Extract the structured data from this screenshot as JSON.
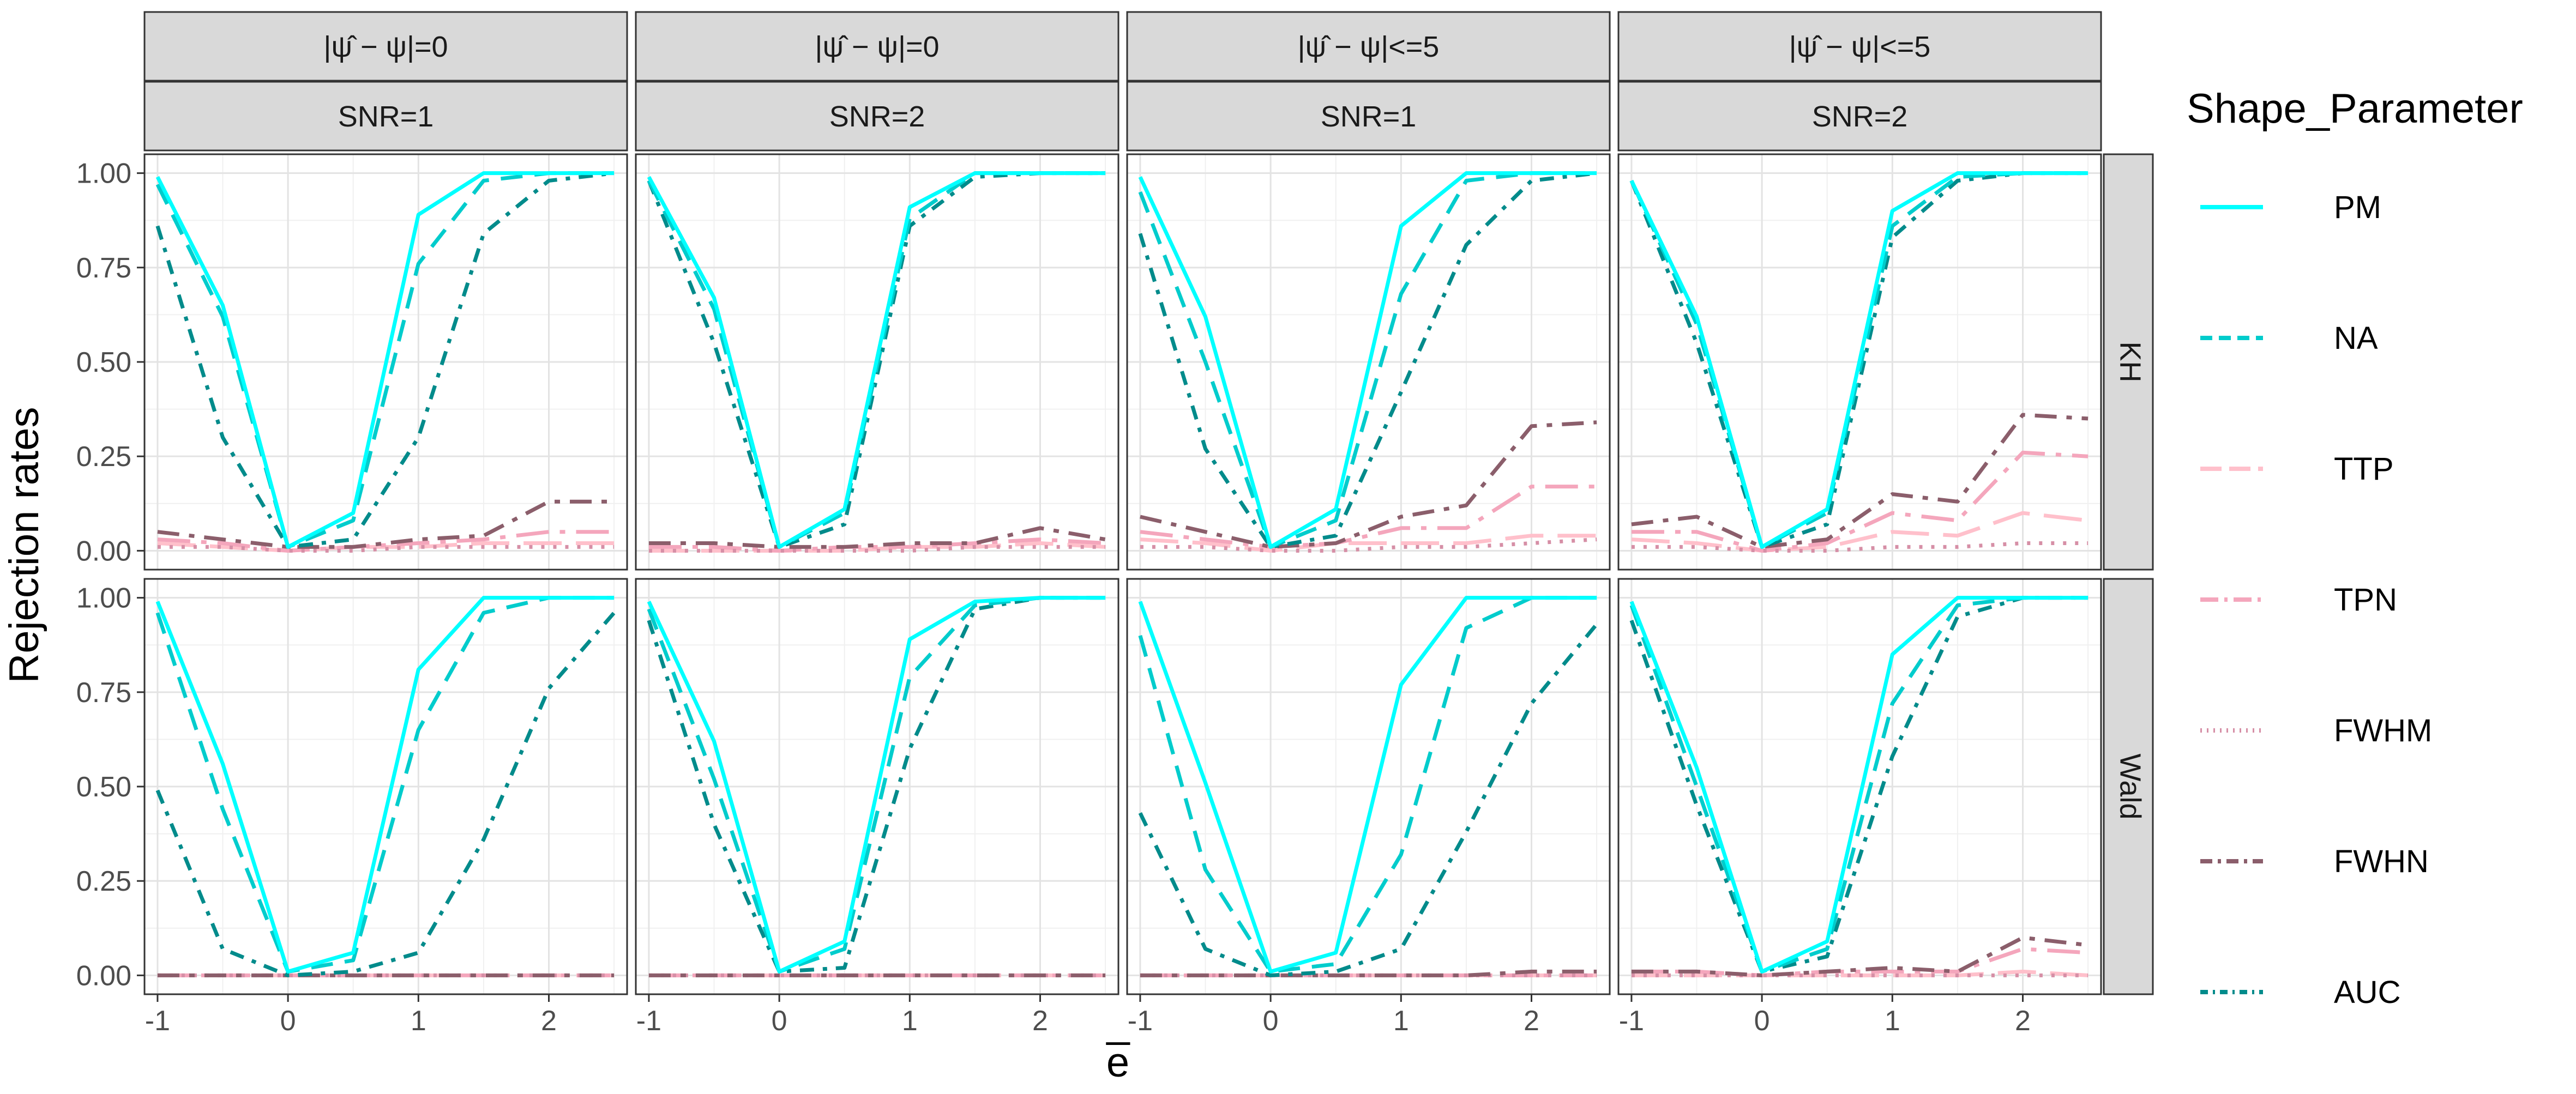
{
  "chart_data": {
    "type": "line",
    "facet_columns": [
      {
        "top": "|ψ̂ − ψ|=0",
        "bottom": "SNR=1"
      },
      {
        "top": "|ψ̂ − ψ|=0",
        "bottom": "SNR=2"
      },
      {
        "top": "|ψ̂ − ψ|<=5",
        "bottom": "SNR=1"
      },
      {
        "top": "|ψ̂ − ψ|<=5",
        "bottom": "SNR=2"
      }
    ],
    "facet_rows": [
      "KH",
      "Wald"
    ],
    "xlabel": "e̅",
    "ylabel": "Rejection rates",
    "x": [
      -1,
      -0.5,
      0,
      0.5,
      1,
      1.5,
      2,
      2.5
    ],
    "xlim": [
      -1.1,
      2.6
    ],
    "ylim": [
      -0.05,
      1.05
    ],
    "xticks": [
      -1,
      0,
      1,
      2
    ],
    "yticks": [
      0,
      0.25,
      0.5,
      0.75,
      1
    ],
    "ytick_labels": [
      "0.00",
      "0.25",
      "0.50",
      "0.75",
      "1.00"
    ],
    "legend": {
      "title": "Shape_Parameter",
      "position": "right",
      "entries": [
        {
          "name": "PM",
          "color": "#00FFFF",
          "dash": "solid"
        },
        {
          "name": "NA",
          "color": "#00CCCC",
          "dash": "dashed"
        },
        {
          "name": "TTP",
          "color": "#FFC0CB",
          "dash": "longdash"
        },
        {
          "name": "TPN",
          "color": "#F4A6BC",
          "dash": "dashdot-long"
        },
        {
          "name": "FWHM",
          "color": "#D68FA6",
          "dash": "dotted"
        },
        {
          "name": "FWHN",
          "color": "#8B5E6B",
          "dash": "dashdot"
        },
        {
          "name": "AUC",
          "color": "#008B8B",
          "dash": "dashdot-short"
        }
      ]
    },
    "panels": [
      {
        "row": 0,
        "col": 0,
        "series": {
          "PM": [
            0.99,
            0.65,
            0.01,
            0.1,
            0.89,
            1.0,
            1.0,
            1.0
          ],
          "NA": [
            0.97,
            0.62,
            0.01,
            0.08,
            0.76,
            0.98,
            1.0,
            1.0
          ],
          "TTP": [
            0.02,
            0.01,
            0.0,
            0.01,
            0.01,
            0.02,
            0.02,
            0.02
          ],
          "TPN": [
            0.03,
            0.02,
            0.0,
            0.01,
            0.02,
            0.03,
            0.05,
            0.05
          ],
          "FWHM": [
            0.01,
            0.01,
            0.0,
            0.0,
            0.01,
            0.01,
            0.01,
            0.01
          ],
          "FWHN": [
            0.05,
            0.03,
            0.01,
            0.01,
            0.03,
            0.04,
            0.13,
            0.13
          ],
          "AUC": [
            0.86,
            0.3,
            0.01,
            0.03,
            0.3,
            0.84,
            0.98,
            1.0
          ]
        }
      },
      {
        "row": 0,
        "col": 1,
        "series": {
          "PM": [
            0.99,
            0.67,
            0.01,
            0.11,
            0.91,
            1.0,
            1.0,
            1.0
          ],
          "NA": [
            0.98,
            0.64,
            0.01,
            0.1,
            0.88,
            1.0,
            1.0,
            1.0
          ],
          "TTP": [
            0.0,
            0.0,
            0.0,
            0.0,
            0.01,
            0.01,
            0.02,
            0.01
          ],
          "TPN": [
            0.01,
            0.01,
            0.0,
            0.01,
            0.01,
            0.02,
            0.03,
            0.02
          ],
          "FWHM": [
            0.0,
            0.0,
            0.0,
            0.0,
            0.0,
            0.01,
            0.01,
            0.01
          ],
          "FWHN": [
            0.02,
            0.02,
            0.01,
            0.01,
            0.02,
            0.02,
            0.06,
            0.03
          ],
          "AUC": [
            0.98,
            0.55,
            0.01,
            0.07,
            0.86,
            0.99,
            1.0,
            1.0
          ]
        }
      },
      {
        "row": 0,
        "col": 2,
        "series": {
          "PM": [
            0.99,
            0.62,
            0.01,
            0.11,
            0.86,
            1.0,
            1.0,
            1.0
          ],
          "NA": [
            0.95,
            0.5,
            0.01,
            0.08,
            0.68,
            0.98,
            1.0,
            1.0
          ],
          "TTP": [
            0.03,
            0.02,
            0.0,
            0.02,
            0.02,
            0.02,
            0.04,
            0.04
          ],
          "TPN": [
            0.05,
            0.03,
            0.01,
            0.02,
            0.06,
            0.06,
            0.17,
            0.17
          ],
          "FWHM": [
            0.01,
            0.01,
            0.0,
            0.0,
            0.01,
            0.01,
            0.02,
            0.03
          ],
          "FWHN": [
            0.09,
            0.05,
            0.01,
            0.02,
            0.09,
            0.12,
            0.33,
            0.34
          ],
          "AUC": [
            0.84,
            0.27,
            0.01,
            0.04,
            0.42,
            0.81,
            0.98,
            1.0
          ]
        }
      },
      {
        "row": 0,
        "col": 3,
        "series": {
          "PM": [
            0.98,
            0.62,
            0.01,
            0.11,
            0.9,
            1.0,
            1.0,
            1.0
          ],
          "NA": [
            0.98,
            0.6,
            0.01,
            0.1,
            0.86,
            0.99,
            1.0,
            1.0
          ],
          "TTP": [
            0.03,
            0.02,
            0.0,
            0.01,
            0.05,
            0.04,
            0.1,
            0.08
          ],
          "TPN": [
            0.05,
            0.05,
            0.0,
            0.02,
            0.1,
            0.08,
            0.26,
            0.25
          ],
          "FWHM": [
            0.01,
            0.01,
            0.0,
            0.0,
            0.01,
            0.01,
            0.02,
            0.02
          ],
          "FWHN": [
            0.07,
            0.09,
            0.01,
            0.03,
            0.15,
            0.13,
            0.36,
            0.35
          ],
          "AUC": [
            0.98,
            0.55,
            0.01,
            0.07,
            0.83,
            0.98,
            1.0,
            1.0
          ]
        }
      },
      {
        "row": 1,
        "col": 0,
        "series": {
          "PM": [
            0.99,
            0.56,
            0.01,
            0.06,
            0.81,
            1.0,
            1.0,
            1.0
          ],
          "NA": [
            0.96,
            0.44,
            0.01,
            0.04,
            0.65,
            0.96,
            1.0,
            1.0
          ],
          "TTP": [
            0.0,
            0.0,
            0.0,
            0.0,
            0.0,
            0.0,
            0.0,
            0.0
          ],
          "TPN": [
            0.0,
            0.0,
            0.0,
            0.0,
            0.0,
            0.0,
            0.0,
            0.0
          ],
          "FWHM": [
            0.0,
            0.0,
            0.0,
            0.0,
            0.0,
            0.0,
            0.0,
            0.0
          ],
          "FWHN": [
            0.0,
            0.0,
            0.0,
            0.0,
            0.0,
            0.0,
            0.0,
            0.0
          ],
          "AUC": [
            0.49,
            0.07,
            0.0,
            0.01,
            0.06,
            0.36,
            0.76,
            0.96
          ]
        }
      },
      {
        "row": 1,
        "col": 1,
        "series": {
          "PM": [
            0.99,
            0.62,
            0.01,
            0.09,
            0.89,
            0.99,
            1.0,
            1.0
          ],
          "NA": [
            0.97,
            0.52,
            0.01,
            0.07,
            0.79,
            0.98,
            1.0,
            1.0
          ],
          "TTP": [
            0.0,
            0.0,
            0.0,
            0.0,
            0.0,
            0.0,
            0.0,
            0.0
          ],
          "TPN": [
            0.0,
            0.0,
            0.0,
            0.0,
            0.0,
            0.0,
            0.0,
            0.0
          ],
          "FWHM": [
            0.0,
            0.0,
            0.0,
            0.0,
            0.0,
            0.0,
            0.0,
            0.0
          ],
          "FWHN": [
            0.0,
            0.0,
            0.0,
            0.0,
            0.0,
            0.0,
            0.0,
            0.0
          ],
          "AUC": [
            0.94,
            0.4,
            0.01,
            0.02,
            0.6,
            0.97,
            1.0,
            1.0
          ]
        }
      },
      {
        "row": 1,
        "col": 2,
        "series": {
          "PM": [
            0.99,
            0.51,
            0.01,
            0.06,
            0.77,
            1.0,
            1.0,
            1.0
          ],
          "NA": [
            0.9,
            0.28,
            0.01,
            0.03,
            0.32,
            0.92,
            1.0,
            1.0
          ],
          "TTP": [
            0.0,
            0.0,
            0.0,
            0.0,
            0.0,
            0.0,
            0.0,
            0.0
          ],
          "TPN": [
            0.0,
            0.0,
            0.0,
            0.0,
            0.0,
            0.0,
            0.0,
            0.0
          ],
          "FWHM": [
            0.0,
            0.0,
            0.0,
            0.0,
            0.0,
            0.0,
            0.0,
            0.0
          ],
          "FWHN": [
            0.0,
            0.0,
            0.0,
            0.0,
            0.0,
            0.0,
            0.01,
            0.01
          ],
          "AUC": [
            0.43,
            0.07,
            0.0,
            0.01,
            0.07,
            0.38,
            0.72,
            0.93
          ]
        }
      },
      {
        "row": 1,
        "col": 3,
        "series": {
          "PM": [
            0.99,
            0.55,
            0.01,
            0.09,
            0.85,
            1.0,
            1.0,
            1.0
          ],
          "NA": [
            0.98,
            0.5,
            0.01,
            0.07,
            0.72,
            0.98,
            1.0,
            1.0
          ],
          "TTP": [
            0.0,
            0.0,
            0.0,
            0.0,
            0.0,
            0.0,
            0.01,
            0.0
          ],
          "TPN": [
            0.01,
            0.01,
            0.0,
            0.01,
            0.01,
            0.01,
            0.07,
            0.06
          ],
          "FWHM": [
            0.0,
            0.0,
            0.0,
            0.0,
            0.0,
            0.0,
            0.0,
            0.0
          ],
          "FWHN": [
            0.01,
            0.01,
            0.0,
            0.01,
            0.02,
            0.01,
            0.1,
            0.08
          ],
          "AUC": [
            0.94,
            0.45,
            0.01,
            0.05,
            0.58,
            0.95,
            1.0,
            1.0
          ]
        }
      }
    ]
  }
}
